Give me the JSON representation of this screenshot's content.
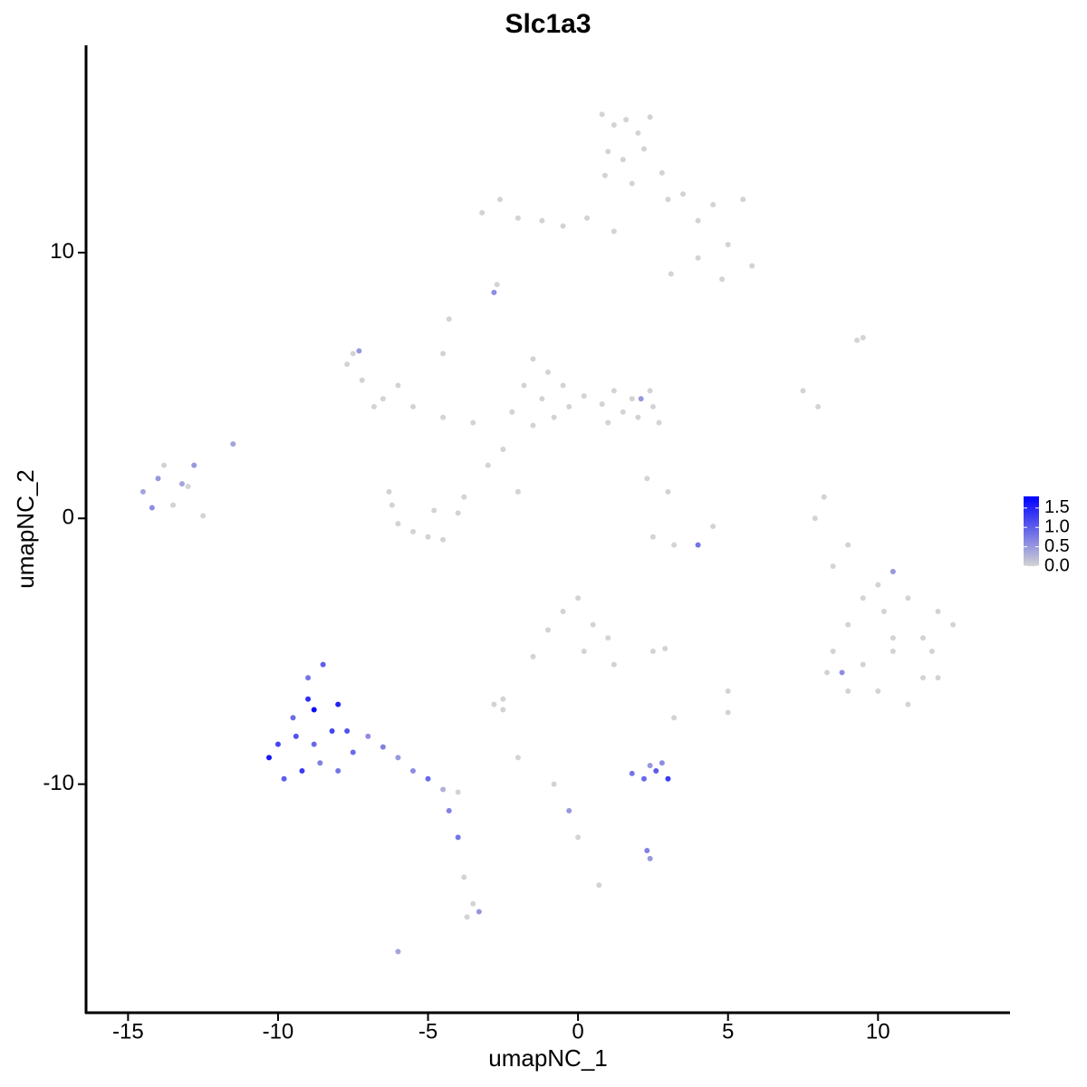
{
  "chart_data": {
    "type": "scatter",
    "title": "Slc1a3",
    "x_label": "umapNC_1",
    "y_label": "umapNC_2",
    "xlim": [
      -16.4,
      14.4
    ],
    "ylim": [
      -18.6,
      17.8
    ],
    "xticks": [
      -15,
      -10,
      -5,
      0,
      5,
      10
    ],
    "yticks": [
      -10,
      0,
      10
    ],
    "colors": [
      "#d3d3d3",
      "#0000ff"
    ],
    "clim": [
      0,
      1.8
    ],
    "cticks": [
      {
        "value": 0,
        "label": "0.0"
      },
      {
        "value": 0.5,
        "label": "0.5"
      },
      {
        "value": 1,
        "label": "1.0"
      },
      {
        "value": 1.5,
        "label": "1.5"
      }
    ],
    "x": [
      0.8,
      1.2,
      1.6,
      2.0,
      2.4,
      1.0,
      1.5,
      2.2,
      0.9,
      1.8,
      -3.2,
      -2.6,
      -2.0,
      -1.2,
      -0.5,
      0.3,
      3.0,
      4.0,
      5.0,
      5.8,
      2.8,
      3.5,
      4.5,
      5.5,
      4.0,
      1.2,
      -2.8,
      -2.7,
      3.1,
      4.8,
      -1.5,
      -1.0,
      -0.5,
      -1.2,
      -0.3,
      -1.8,
      -0.8,
      0.2,
      -1.5,
      -2.2,
      1.2,
      1.8,
      2.5,
      2.0,
      2.7,
      1.5,
      0.8,
      2.1,
      1.0,
      2.4,
      -7.7,
      -7.2,
      -6.5,
      -6.0,
      -6.8,
      -7.5,
      -5.5,
      -4.5,
      -3.5,
      -7.3,
      -4.3,
      -4.5,
      -3.0,
      -2.5,
      -2.0,
      -6.3,
      -5.5,
      -4.5,
      -4.0,
      -6.0,
      -5.0,
      -3.8,
      -6.2,
      -4.8,
      2.5,
      3.2,
      4.0,
      4.5,
      3.0,
      2.3,
      -14.5,
      -14.0,
      -13.5,
      -13.0,
      -14.2,
      -13.8,
      -12.8,
      -12.5,
      -11.5,
      -13.2,
      8.5,
      9.0,
      9.5,
      10.0,
      10.5,
      11.0,
      11.5,
      12.0,
      12.5,
      9.0,
      10.0,
      11.0,
      12.0,
      9.5,
      10.5,
      11.5,
      8.3,
      10.5,
      8.8,
      11.8,
      9.3,
      9.5,
      7.5,
      8.0,
      8.2,
      7.9,
      8.5,
      9.0,
      10.2,
      10.5,
      -10.0,
      -9.5,
      -9.0,
      -8.5,
      -8.0,
      -7.7,
      -9.2,
      -8.8,
      -8.2,
      -10.3,
      -9.8,
      -9.0,
      -8.6,
      -7.5,
      -8.8,
      -9.4,
      -8.0,
      -7.0,
      -6.5,
      -6.0,
      -5.5,
      -5.0,
      -4.5,
      -4.0,
      -4.3,
      -4.0,
      -3.8,
      -3.5,
      -3.7,
      -3.3,
      -0.5,
      0.0,
      0.5,
      -1.0,
      0.2,
      1.0,
      1.2,
      -1.5,
      -2.5,
      -2.8,
      1.8,
      2.2,
      2.6,
      3.0,
      2.4,
      2.8,
      2.3,
      2.4,
      -0.8,
      -0.3,
      0.0,
      0.7,
      -6.0,
      -2.0,
      2.5,
      2.9,
      3.2,
      5.0,
      5.0,
      -2.5
    ],
    "y": [
      15.2,
      14.8,
      15.0,
      14.5,
      15.1,
      13.8,
      13.5,
      13.9,
      12.9,
      12.6,
      11.5,
      12.0,
      11.3,
      11.2,
      11.0,
      11.3,
      12.0,
      11.2,
      10.3,
      9.5,
      13.0,
      12.2,
      11.8,
      12.0,
      9.8,
      10.8,
      8.5,
      8.8,
      9.2,
      9.0,
      6.0,
      5.5,
      5.0,
      4.5,
      4.2,
      5.0,
      3.8,
      4.6,
      3.5,
      4.0,
      4.8,
      4.5,
      4.2,
      3.8,
      3.6,
      4.0,
      4.3,
      4.5,
      3.6,
      4.8,
      5.8,
      5.2,
      4.5,
      5.0,
      4.2,
      6.2,
      4.2,
      3.8,
      3.6,
      6.3,
      7.5,
      6.2,
      2.0,
      2.6,
      1.0,
      1.0,
      -0.5,
      -0.8,
      0.2,
      -0.2,
      -0.7,
      0.8,
      0.5,
      0.3,
      -0.7,
      -1.0,
      -1.0,
      -0.3,
      1.0,
      1.5,
      1.0,
      1.5,
      0.5,
      1.2,
      0.4,
      2.0,
      2.0,
      0.1,
      2.8,
      1.3,
      -5.0,
      -4.0,
      -3.0,
      -2.5,
      -2.0,
      -3.0,
      -4.5,
      -3.5,
      -4.0,
      -6.5,
      -6.5,
      -7.0,
      -6.0,
      -5.5,
      -5.0,
      -6.0,
      -5.8,
      -2.0,
      -5.8,
      -5.0,
      6.7,
      6.8,
      4.8,
      4.2,
      0.8,
      0.0,
      -1.8,
      -1.0,
      -3.5,
      -4.5,
      -8.5,
      -7.5,
      -6.0,
      -5.5,
      -7.0,
      -8.0,
      -9.5,
      -8.5,
      -8.0,
      -9.0,
      -9.8,
      -6.8,
      -9.2,
      -8.8,
      -7.2,
      -8.2,
      -9.5,
      -8.2,
      -8.6,
      -9.0,
      -9.5,
      -9.8,
      -10.2,
      -10.3,
      -11.0,
      -12.0,
      -13.5,
      -14.5,
      -15.0,
      -14.8,
      -3.5,
      -3.0,
      -4.0,
      -4.2,
      -5.0,
      -4.5,
      -5.5,
      -5.2,
      -6.8,
      -7.0,
      -9.6,
      -9.8,
      -9.5,
      -9.8,
      -9.3,
      -9.2,
      -12.5,
      -12.8,
      -10.0,
      -11.0,
      -12.0,
      -13.8,
      -16.3,
      -9.0,
      -5.0,
      -4.9,
      -7.5,
      -6.5,
      -7.3,
      -7.2
    ],
    "values": [
      0,
      0,
      0,
      0,
      0,
      0,
      0,
      0,
      0,
      0,
      0,
      0,
      0,
      0,
      0,
      0,
      0,
      0,
      0,
      0,
      0,
      0,
      0,
      0,
      0,
      0,
      0.6,
      0,
      0,
      0,
      0,
      0,
      0,
      0,
      0,
      0,
      0,
      0,
      0,
      0,
      0,
      0,
      0,
      0,
      0,
      0,
      0,
      0.5,
      0,
      0,
      0,
      0,
      0,
      0,
      0,
      0,
      0,
      0,
      0,
      0.5,
      0,
      0,
      0,
      0,
      0,
      0,
      0,
      0,
      0,
      0,
      0,
      0,
      0,
      0,
      0,
      0,
      0.8,
      0,
      0,
      0,
      0.4,
      0.5,
      0,
      0,
      0.6,
      0,
      0.5,
      0,
      0.4,
      0.4,
      0,
      0,
      0,
      0,
      0,
      0,
      0,
      0,
      0,
      0,
      0,
      0,
      0,
      0,
      0,
      0,
      0,
      0.5,
      0.6,
      0,
      0,
      0,
      0,
      0,
      0,
      0,
      0,
      0,
      0,
      0,
      1.2,
      0.9,
      0.8,
      1.0,
      1.5,
      1.1,
      1.3,
      0.9,
      1.2,
      1.6,
      1.0,
      1.4,
      0.7,
      0.9,
      1.7,
      1.1,
      0.8,
      0.6,
      0.7,
      0.5,
      0.6,
      0.9,
      0.3,
      0,
      0.7,
      0.8,
      0,
      0,
      0,
      0.5,
      0,
      0,
      0,
      0,
      0,
      0,
      0,
      0,
      0,
      0,
      0.8,
      0.9,
      1.0,
      1.3,
      0.5,
      0.6,
      0.7,
      0.5,
      0,
      0.5,
      0,
      0,
      0.4,
      0,
      0,
      0,
      0,
      0,
      0,
      0
    ]
  }
}
